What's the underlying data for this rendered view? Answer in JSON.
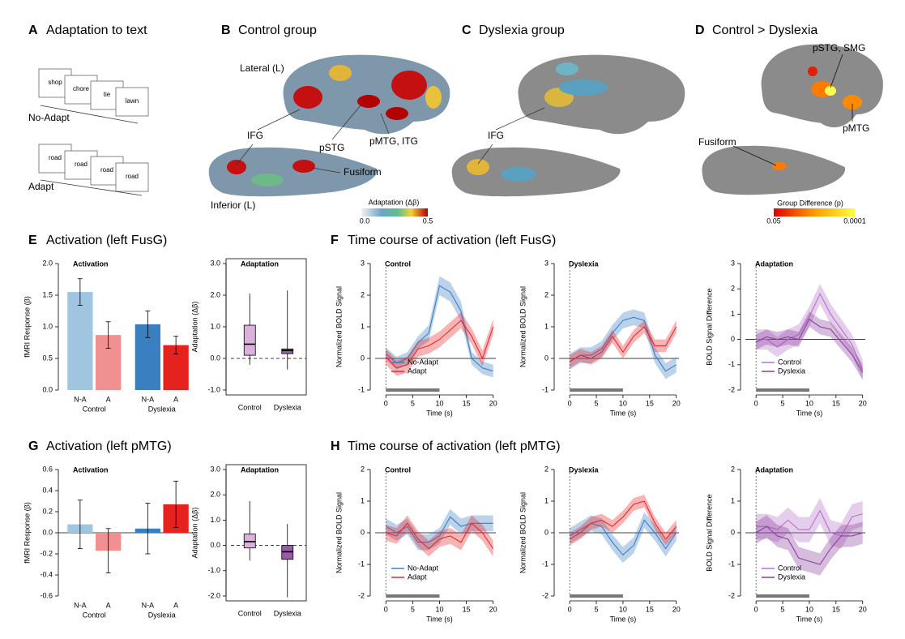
{
  "sections": {
    "A": {
      "letter": "A",
      "title": "Adaptation to text"
    },
    "B": {
      "letter": "B",
      "title": "Control group"
    },
    "C": {
      "letter": "C",
      "title": "Dyslexia group"
    },
    "D": {
      "letter": "D",
      "title": "Control > Dyslexia"
    },
    "E": {
      "letter": "E",
      "title": "Activation (left FusG)"
    },
    "F": {
      "letter": "F",
      "title": "Time course of activation (left FusG)"
    },
    "G": {
      "letter": "G",
      "title": "Activation (left pMTG)"
    },
    "H": {
      "letter": "H",
      "title": "Time course of activation (left pMTG)"
    }
  },
  "panels": {
    "A": {
      "no_adapt_words": [
        "shop",
        "chore",
        "tie",
        "lawn"
      ],
      "no_adapt_label": "No-Adapt",
      "adapt_words": [
        "road",
        "road",
        "road",
        "road"
      ],
      "adapt_label": "Adapt"
    },
    "B": {
      "labels": [
        "Lateral (L)",
        "IFG",
        "pSTG",
        "pMTG, ITG",
        "Fusiform",
        "Inferior (L)"
      ],
      "colorbar": {
        "title": "Adaptation (Δβ)",
        "min": "0.0",
        "max": "0.5"
      }
    },
    "C": {
      "labels": [
        "IFG"
      ]
    },
    "D": {
      "labels": [
        "pSTG, SMG",
        "pMTG",
        "Fusiform"
      ],
      "colorbar": {
        "title": "Group Difference (p)",
        "min": "0.05",
        "max": "0.0001"
      }
    }
  },
  "chart_data": [
    {
      "type": "bar",
      "title": "Activation",
      "ylabel": "fMRI Response (β)",
      "categories": [
        "N-A",
        "A",
        "N-A",
        "A"
      ],
      "groups": [
        "Control",
        "Dyslexia"
      ],
      "values": [
        1.55,
        0.87,
        1.04,
        0.71
      ],
      "errors": [
        0.21,
        0.21,
        0.21,
        0.14
      ],
      "colors": [
        "#9fc5e1",
        "#f09090",
        "#3a7fbf",
        "#e5221e"
      ],
      "ylim": [
        0,
        2
      ],
      "yticks": [
        {
          "value": 0,
          "label": "0.0"
        },
        0.5,
        {
          "value": 1,
          "label": "1.0"
        },
        1.5,
        {
          "value": 2,
          "label": "2.0"
        }
      ]
    },
    {
      "type": "box",
      "title": "Adaptation",
      "ylabel": "Adaptation (Δβ)",
      "categories": [
        "Control",
        "Dyslexia"
      ],
      "boxes": [
        {
          "whisker_low": -0.2,
          "q1": 0.1,
          "median": 0.45,
          "q3": 1.05,
          "whisker_high": 2.05,
          "color": "#dcb0dc"
        },
        {
          "whisker_low": -0.35,
          "q1": 0.15,
          "median": 0.25,
          "q3": 0.3,
          "whisker_high": 2.15,
          "color": "#9a5aa8"
        }
      ],
      "ylim": [
        -1,
        3
      ],
      "yticks": [
        {
          "value": -1,
          "label": "-1.0"
        },
        {
          "value": 0,
          "label": "0.0"
        },
        {
          "value": 1,
          "label": "1.0"
        },
        {
          "value": 2,
          "label": "2.0"
        },
        {
          "value": 3,
          "label": "3.0"
        }
      ]
    },
    {
      "type": "line",
      "title": "Control",
      "xlabel": "Time (s)",
      "ylabel": "Normalized BOLD Signal",
      "legend": "lower-left",
      "x": [
        0,
        2,
        4,
        6,
        8,
        10,
        12,
        14,
        16,
        18,
        20
      ],
      "xlim": [
        -2,
        20.5
      ],
      "xticks": [
        0,
        5,
        10,
        15,
        20
      ],
      "ylim": [
        -1,
        3
      ],
      "yticks": [
        -1,
        0,
        1,
        2,
        3
      ],
      "stimulus": [
        0,
        10
      ],
      "series": [
        {
          "name": "No-Adapt",
          "color": "#3b7fc4",
          "values": [
            0.15,
            -0.15,
            0.0,
            0.5,
            0.8,
            2.3,
            2.1,
            1.5,
            0.0,
            -0.3,
            -0.4
          ],
          "upper": [
            0.35,
            0.05,
            0.2,
            0.7,
            1.05,
            2.6,
            2.4,
            1.8,
            0.2,
            -0.1,
            -0.2
          ],
          "lower": [
            -0.05,
            -0.35,
            -0.2,
            0.3,
            0.55,
            2.0,
            1.8,
            1.2,
            -0.2,
            -0.5,
            -0.6
          ]
        },
        {
          "name": "Adapt",
          "color": "#e8282b",
          "values": [
            0.05,
            -0.3,
            -0.2,
            0.3,
            0.4,
            0.6,
            0.9,
            1.2,
            0.7,
            0.0,
            1.0
          ],
          "upper": [
            0.3,
            -0.05,
            0.05,
            0.55,
            0.65,
            0.85,
            1.15,
            1.45,
            0.95,
            0.25,
            1.25
          ],
          "lower": [
            -0.2,
            -0.55,
            -0.45,
            0.05,
            0.15,
            0.35,
            0.65,
            0.95,
            0.45,
            -0.25,
            0.75
          ]
        }
      ]
    },
    {
      "type": "line",
      "title": "Dyslexia",
      "xlabel": "Time (s)",
      "ylabel": "Normalized BOLD Signal",
      "x": [
        0,
        2,
        4,
        6,
        8,
        10,
        12,
        14,
        16,
        18,
        20
      ],
      "xlim": [
        -2,
        20.5
      ],
      "xticks": [
        0,
        5,
        10,
        15,
        20
      ],
      "ylim": [
        -1,
        3
      ],
      "yticks": [
        -1,
        0,
        1,
        2,
        3
      ],
      "stimulus": [
        0,
        10
      ],
      "series": [
        {
          "name": "No-Adapt",
          "color": "#3b7fc4",
          "values": [
            -0.1,
            0.1,
            0.1,
            0.3,
            0.8,
            1.2,
            1.3,
            1.2,
            0.1,
            -0.4,
            -0.2
          ],
          "upper": [
            0.15,
            0.35,
            0.35,
            0.55,
            1.05,
            1.45,
            1.55,
            1.45,
            0.35,
            -0.15,
            0.05
          ],
          "lower": [
            -0.35,
            -0.15,
            -0.15,
            0.05,
            0.55,
            0.95,
            1.05,
            0.95,
            -0.15,
            -0.65,
            -0.45
          ]
        },
        {
          "name": "Adapt",
          "color": "#e8282b",
          "values": [
            -0.1,
            0.1,
            0.0,
            0.2,
            0.7,
            0.2,
            0.7,
            1.0,
            0.4,
            0.4,
            1.0
          ],
          "upper": [
            0.1,
            0.3,
            0.2,
            0.4,
            0.9,
            0.4,
            0.9,
            1.2,
            0.6,
            0.6,
            1.2
          ],
          "lower": [
            -0.3,
            -0.1,
            -0.2,
            0.0,
            0.5,
            0.0,
            0.5,
            0.8,
            0.2,
            0.2,
            0.8
          ]
        }
      ]
    },
    {
      "type": "line",
      "title": "Adaptation",
      "xlabel": "Time (s)",
      "ylabel": "BOLD Signal Difference",
      "legend": "lower-left",
      "x": [
        0,
        2,
        4,
        6,
        8,
        10,
        12,
        14,
        16,
        18,
        20
      ],
      "xlim": [
        -2,
        20.5
      ],
      "xticks": [
        0,
        5,
        10,
        15,
        20
      ],
      "ylim": [
        -2,
        3
      ],
      "yticks": [
        -2,
        -1,
        0,
        1,
        2,
        3
      ],
      "stimulus": [
        0,
        10
      ],
      "series": [
        {
          "name": "Control",
          "color": "#b572c6",
          "values": [
            0.0,
            0.0,
            -0.3,
            0.0,
            0.2,
            0.9,
            1.8,
            1.0,
            0.4,
            -0.2,
            -1.2
          ],
          "upper": [
            0.4,
            0.4,
            0.1,
            0.4,
            0.6,
            1.3,
            2.2,
            1.4,
            0.8,
            0.2,
            -0.8
          ],
          "lower": [
            -0.4,
            -0.4,
            -0.7,
            -0.4,
            -0.2,
            0.5,
            1.4,
            0.6,
            0.0,
            -0.6,
            -1.6
          ]
        },
        {
          "name": "Dyslexia",
          "color": "#8a3f9e",
          "values": [
            -0.1,
            0.1,
            0.0,
            0.1,
            0.0,
            0.8,
            0.5,
            0.4,
            -0.1,
            -0.6,
            -1.3
          ],
          "upper": [
            0.2,
            0.4,
            0.3,
            0.4,
            0.3,
            1.1,
            0.8,
            0.7,
            0.2,
            -0.3,
            -1.0
          ],
          "lower": [
            -0.4,
            -0.2,
            -0.3,
            -0.2,
            -0.3,
            0.5,
            0.2,
            0.1,
            -0.4,
            -0.9,
            -1.6
          ]
        }
      ]
    },
    {
      "type": "bar",
      "title": "Activation",
      "ylabel": "fMRI Response (β)",
      "categories": [
        "N-A",
        "A",
        "N-A",
        "A"
      ],
      "groups": [
        "Control",
        "Dyslexia"
      ],
      "values": [
        0.08,
        -0.17,
        0.04,
        0.27
      ],
      "errors": [
        0.23,
        0.21,
        0.24,
        0.22
      ],
      "colors": [
        "#9fc5e1",
        "#f09090",
        "#3a7fbf",
        "#e5221e"
      ],
      "ylim": [
        -0.6,
        0.6
      ],
      "yticks": [
        -0.6,
        -0.4,
        -0.2,
        {
          "value": 0,
          "label": "0.0"
        },
        0.2,
        0.4,
        0.6
      ]
    },
    {
      "type": "box",
      "title": "Adaptation",
      "ylabel": "Adaptation (Δβ)",
      "categories": [
        "Control",
        "Dyslexia"
      ],
      "boxes": [
        {
          "whisker_low": -0.6,
          "q1": -0.1,
          "median": 0.15,
          "q3": 0.45,
          "whisker_high": 1.75,
          "color": "#dcb0dc"
        },
        {
          "whisker_low": -2.05,
          "q1": -0.55,
          "median": -0.25,
          "q3": 0.0,
          "whisker_high": 0.85,
          "color": "#9a5aa8"
        }
      ],
      "ylim": [
        -2,
        3
      ],
      "yticks": [
        {
          "value": -2,
          "label": "-2.0"
        },
        {
          "value": -1,
          "label": "-1.0"
        },
        {
          "value": 0,
          "label": "0.0"
        },
        {
          "value": 1,
          "label": "1.0"
        },
        {
          "value": 2,
          "label": "2.0"
        },
        {
          "value": 3,
          "label": "3.0"
        }
      ]
    },
    {
      "type": "line",
      "title": "Control",
      "xlabel": "Time (s)",
      "ylabel": "Normalized BOLD Signal",
      "legend": "lower-left",
      "x": [
        0,
        2,
        4,
        6,
        8,
        10,
        12,
        14,
        16,
        18,
        20
      ],
      "xlim": [
        -2,
        20.5
      ],
      "xticks": [
        0,
        5,
        10,
        15,
        20
      ],
      "ylim": [
        -2,
        2
      ],
      "yticks": [
        -2,
        -1,
        0,
        1,
        2
      ],
      "stimulus": [
        0,
        10
      ],
      "series": [
        {
          "name": "No-Adapt",
          "color": "#3b7fc4",
          "values": [
            0.2,
            0.0,
            0.2,
            -0.3,
            -0.3,
            -0.1,
            0.5,
            0.2,
            0.3,
            0.3,
            0.3
          ],
          "upper": [
            0.45,
            0.25,
            0.45,
            -0.05,
            -0.05,
            0.15,
            0.75,
            0.45,
            0.55,
            0.55,
            0.55
          ],
          "lower": [
            -0.05,
            -0.25,
            -0.05,
            -0.55,
            -0.55,
            -0.35,
            0.25,
            -0.05,
            0.05,
            0.05,
            0.05
          ]
        },
        {
          "name": "Adapt",
          "color": "#e8282b",
          "values": [
            0.0,
            -0.1,
            0.3,
            -0.2,
            -0.5,
            -0.2,
            -0.1,
            -0.3,
            0.3,
            0.0,
            -0.5
          ],
          "upper": [
            0.25,
            0.15,
            0.55,
            0.05,
            -0.25,
            0.05,
            0.15,
            -0.05,
            0.55,
            0.25,
            -0.25
          ],
          "lower": [
            -0.25,
            -0.35,
            0.05,
            -0.45,
            -0.75,
            -0.45,
            -0.35,
            -0.55,
            0.05,
            -0.25,
            -0.75
          ]
        }
      ]
    },
    {
      "type": "line",
      "title": "Dyslexia",
      "xlabel": "Time (s)",
      "ylabel": "Normalized BOLD Signal",
      "x": [
        0,
        2,
        4,
        6,
        8,
        10,
        12,
        14,
        16,
        18,
        20
      ],
      "xlim": [
        -2,
        20.5
      ],
      "xticks": [
        0,
        5,
        10,
        15,
        20
      ],
      "ylim": [
        -2,
        2
      ],
      "yticks": [
        -2,
        -1,
        0,
        1,
        2
      ],
      "stimulus": [
        0,
        10
      ],
      "series": [
        {
          "name": "No-Adapt",
          "color": "#3b7fc4",
          "values": [
            -0.1,
            0.1,
            0.3,
            0.2,
            -0.3,
            -0.7,
            -0.4,
            0.4,
            0.0,
            -0.5,
            0.0
          ],
          "upper": [
            0.15,
            0.35,
            0.55,
            0.45,
            -0.05,
            -0.45,
            -0.15,
            0.65,
            0.25,
            -0.25,
            0.25
          ],
          "lower": [
            -0.35,
            -0.15,
            0.05,
            -0.05,
            -0.55,
            -0.95,
            -0.65,
            0.15,
            -0.25,
            -0.75,
            -0.25
          ]
        },
        {
          "name": "Adapt",
          "color": "#e8282b",
          "values": [
            -0.2,
            0.0,
            0.3,
            0.4,
            0.2,
            0.5,
            0.9,
            1.0,
            0.3,
            -0.2,
            0.2
          ],
          "upper": [
            0.0,
            0.2,
            0.5,
            0.6,
            0.4,
            0.7,
            1.1,
            1.2,
            0.5,
            0.0,
            0.4
          ],
          "lower": [
            -0.4,
            -0.2,
            0.1,
            0.2,
            0.0,
            0.3,
            0.7,
            0.8,
            0.1,
            -0.4,
            0.0
          ]
        }
      ]
    },
    {
      "type": "line",
      "title": "Adaptation",
      "xlabel": "Time (s)",
      "ylabel": "BOLD Signal Difference",
      "legend": "lower-left",
      "x": [
        0,
        2,
        4,
        6,
        8,
        10,
        12,
        14,
        16,
        18,
        20
      ],
      "xlim": [
        -2,
        20.5
      ],
      "xticks": [
        0,
        5,
        10,
        15,
        20
      ],
      "ylim": [
        -2,
        2
      ],
      "yticks": [
        -2,
        -1,
        0,
        1,
        2
      ],
      "stimulus": [
        0,
        10
      ],
      "series": [
        {
          "name": "Control",
          "color": "#b572c6",
          "values": [
            0.2,
            0.2,
            0.1,
            0.4,
            0.1,
            0.1,
            0.7,
            0.0,
            -0.1,
            0.5,
            0.6
          ],
          "upper": [
            0.6,
            0.6,
            0.5,
            0.8,
            0.5,
            0.5,
            1.1,
            0.4,
            0.3,
            0.9,
            1.0
          ],
          "lower": [
            -0.2,
            -0.2,
            -0.3,
            0.0,
            -0.3,
            -0.3,
            0.3,
            -0.4,
            -0.5,
            0.1,
            0.2
          ]
        },
        {
          "name": "Dyslexia",
          "color": "#8a3f9e",
          "values": [
            0.0,
            0.2,
            -0.1,
            -0.2,
            -0.8,
            -0.9,
            -1.0,
            -0.5,
            -0.1,
            -0.1,
            0.0
          ],
          "upper": [
            0.35,
            0.55,
            0.25,
            0.15,
            -0.45,
            -0.55,
            -0.65,
            -0.15,
            0.25,
            0.25,
            0.35
          ],
          "lower": [
            -0.35,
            -0.15,
            -0.45,
            -0.55,
            -1.15,
            -1.25,
            -1.35,
            -0.85,
            -0.45,
            -0.45,
            -0.35
          ]
        }
      ]
    }
  ]
}
